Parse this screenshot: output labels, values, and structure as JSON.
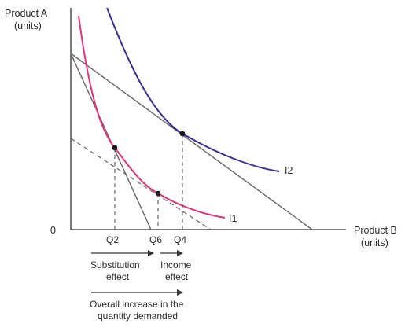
{
  "axes": {
    "y_label_line1": "Product A",
    "y_label_line2": "(units)",
    "x_label_line1": "Product B",
    "x_label_line2": "(units)",
    "origin": "0"
  },
  "curves": {
    "i1_label": "I1",
    "i2_label": "I2"
  },
  "ticks": {
    "q2": "Q2",
    "q6": "Q6",
    "q4": "Q4"
  },
  "effects": {
    "substitution_line1": "Substitution",
    "substitution_line2": "effect",
    "income_line1": "Income",
    "income_line2": "effect",
    "overall_line1": "Overall increase in the",
    "overall_line2": "quantity demanded"
  },
  "colors": {
    "i1": "#e0357a",
    "i2": "#3a2f8f",
    "axis": "#333333",
    "budget": "#555555"
  }
}
